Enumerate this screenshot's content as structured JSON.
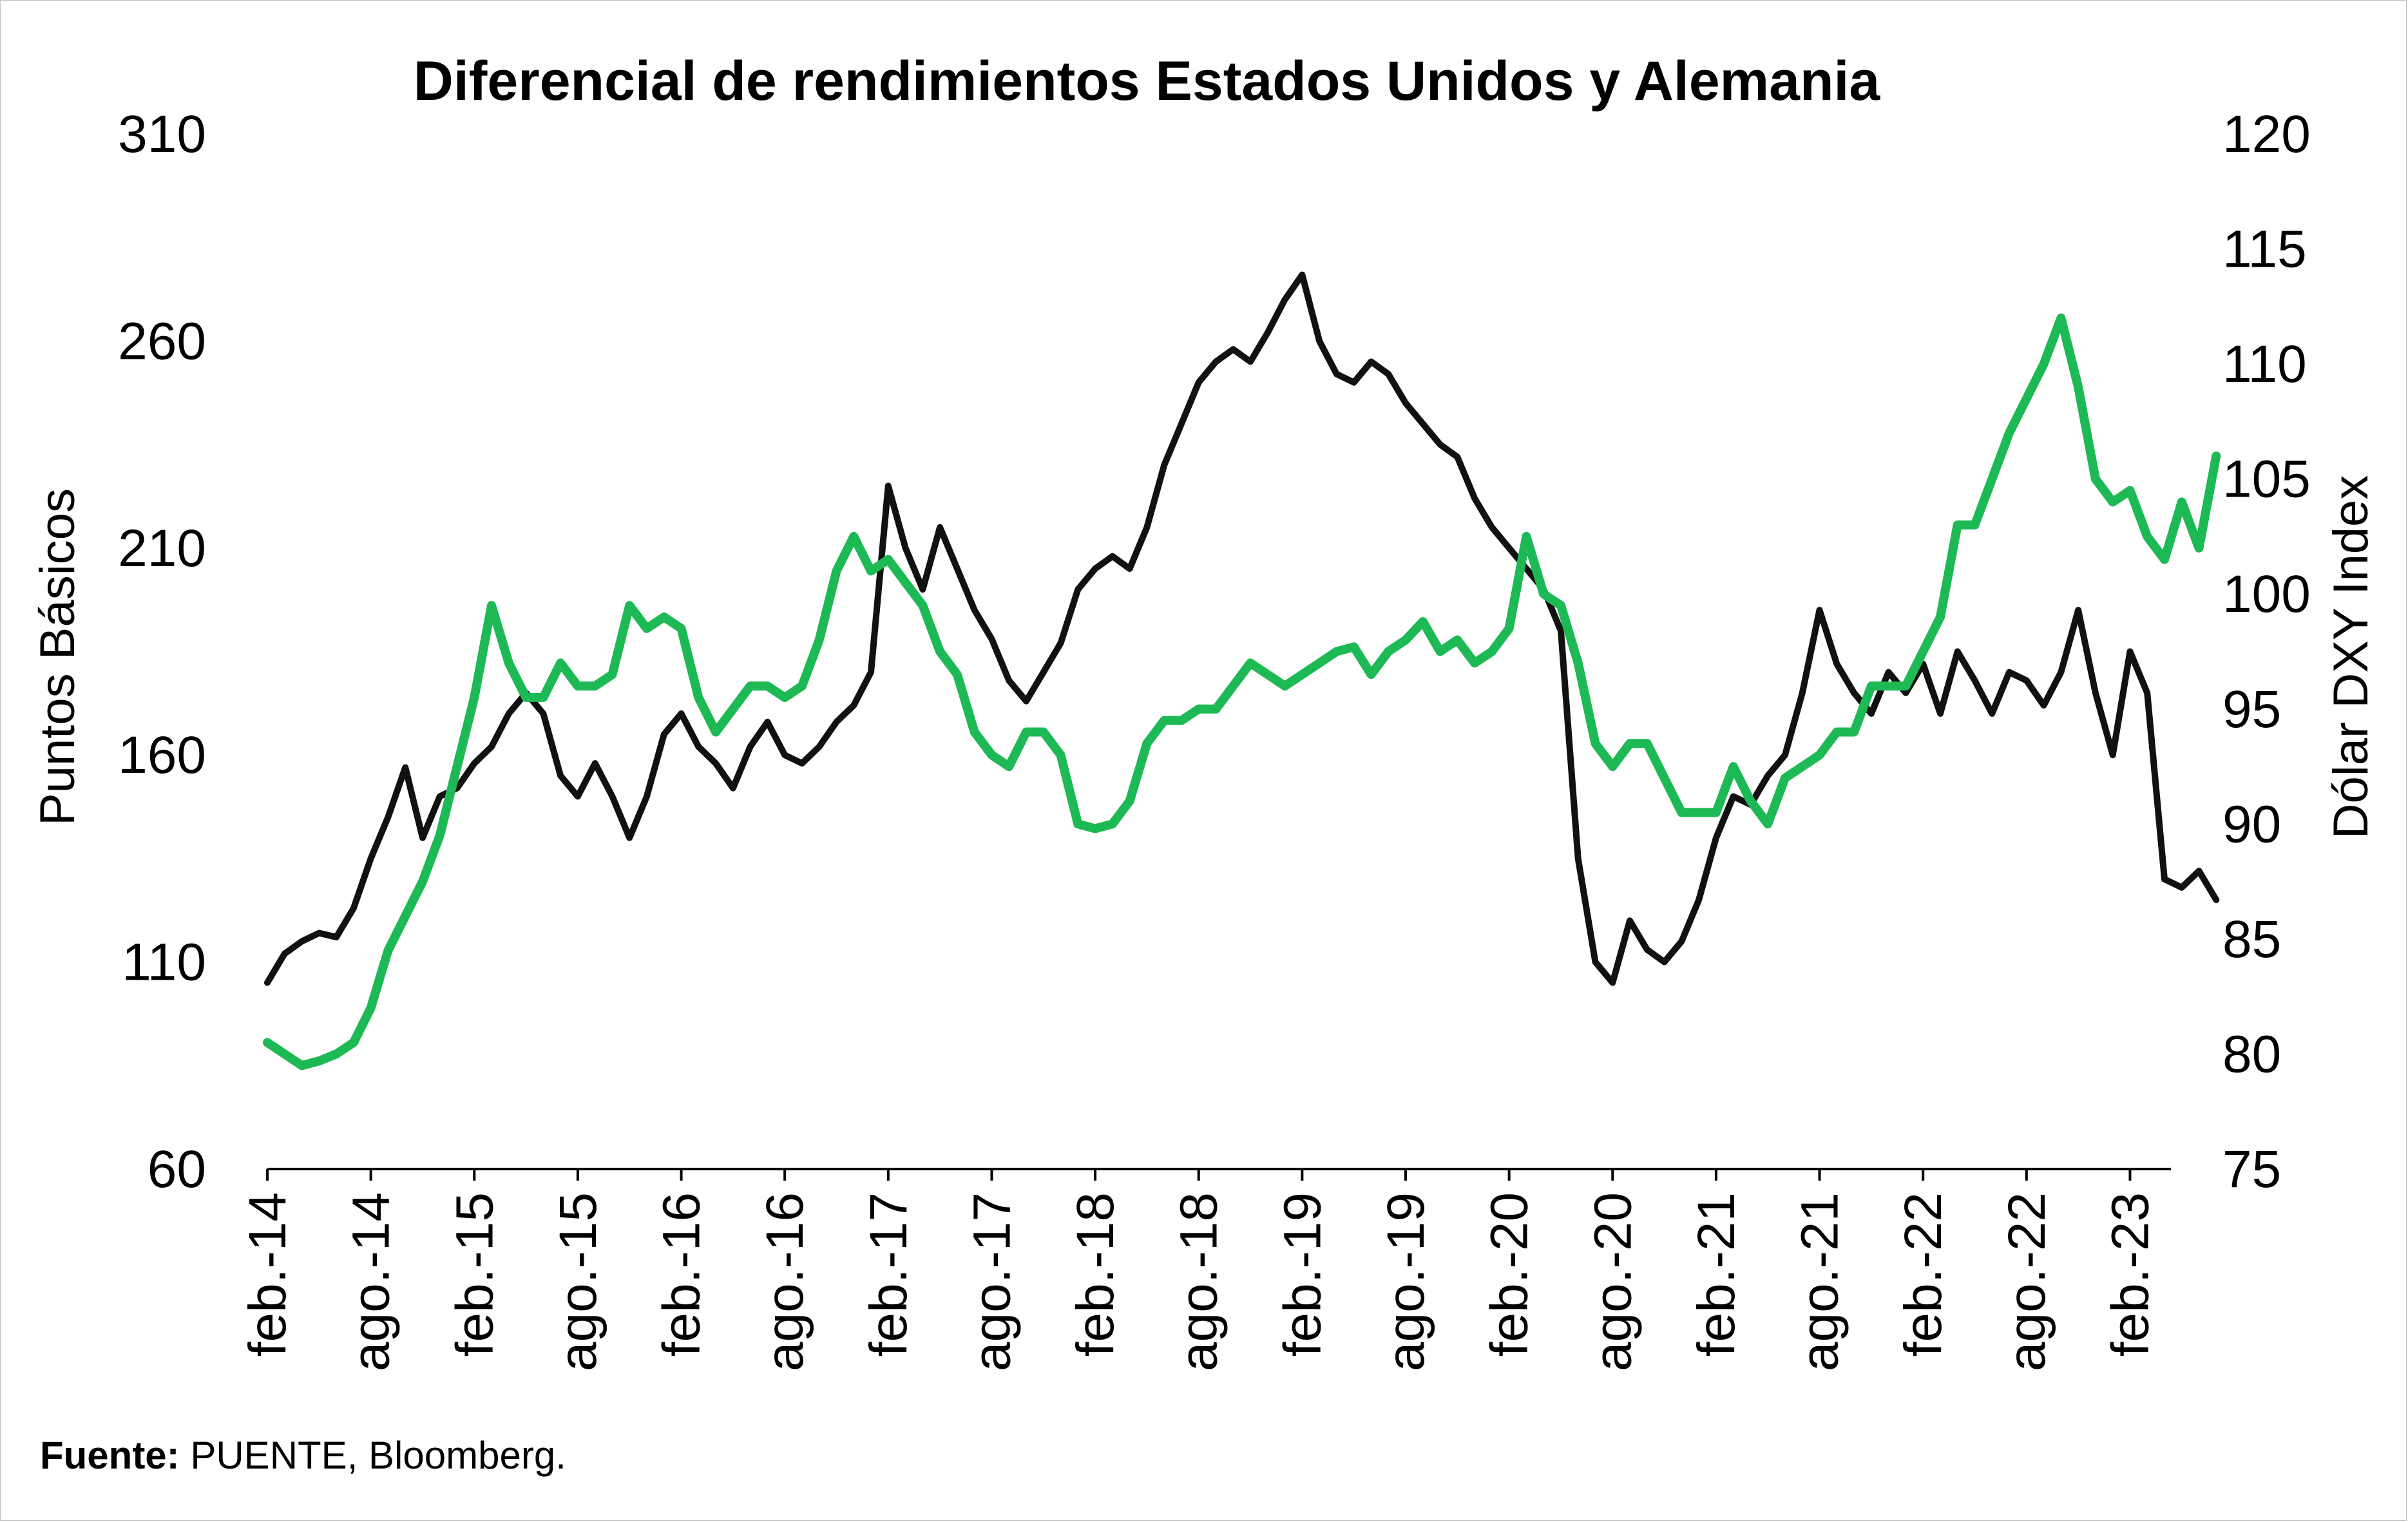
{
  "source": {
    "label": "Fuente:",
    "text": "PUENTE, Bloomberg."
  },
  "colors": {
    "spread": "#111111",
    "dxy": "#1db954",
    "axis": "#000000"
  },
  "chart_data": {
    "type": "line",
    "title": "Diferencial de rendimientos Estados Unidos y Alemania",
    "ylabel": "Puntos Básicos",
    "y2label": "Dólar DXY Index",
    "ylim": [
      60,
      310
    ],
    "y2lim": [
      75,
      120
    ],
    "yticks": [
      "310",
      "260",
      "210",
      "160",
      "110",
      "60"
    ],
    "y2ticks": [
      "120",
      "115",
      "110",
      "105",
      "100",
      "95",
      "90",
      "85",
      "80",
      "75"
    ],
    "xlim": [
      "2014-02",
      "2023-04"
    ],
    "xticks": [
      {
        "label": "feb.-14",
        "date": "2014-02"
      },
      {
        "label": "ago.-14",
        "date": "2014-08"
      },
      {
        "label": "feb.-15",
        "date": "2015-02"
      },
      {
        "label": "ago.-15",
        "date": "2015-08"
      },
      {
        "label": "feb.-16",
        "date": "2016-02"
      },
      {
        "label": "ago.-16",
        "date": "2016-08"
      },
      {
        "label": "feb.-17",
        "date": "2017-02"
      },
      {
        "label": "ago.-17",
        "date": "2017-08"
      },
      {
        "label": "feb.-18",
        "date": "2018-02"
      },
      {
        "label": "ago.-18",
        "date": "2018-08"
      },
      {
        "label": "feb.-19",
        "date": "2019-02"
      },
      {
        "label": "ago.-19",
        "date": "2019-08"
      },
      {
        "label": "feb.-20",
        "date": "2020-02"
      },
      {
        "label": "ago.-20",
        "date": "2020-08"
      },
      {
        "label": "feb.-21",
        "date": "2021-02"
      },
      {
        "label": "ago.-21",
        "date": "2021-08"
      },
      {
        "label": "feb.-22",
        "date": "2022-02"
      },
      {
        "label": "ago.-22",
        "date": "2022-08"
      },
      {
        "label": "feb.-23",
        "date": "2023-02"
      }
    ],
    "series": [
      {
        "axis": "left",
        "color": "#111111",
        "points": [
          [
            "2014-02",
            105
          ],
          [
            "2014-03",
            112
          ],
          [
            "2014-04",
            115
          ],
          [
            "2014-05",
            117
          ],
          [
            "2014-06",
            116
          ],
          [
            "2014-07",
            123
          ],
          [
            "2014-08",
            135
          ],
          [
            "2014-09",
            145
          ],
          [
            "2014-10",
            157
          ],
          [
            "2014-11",
            140
          ],
          [
            "2014-12",
            150
          ],
          [
            "2015-01",
            152
          ],
          [
            "2015-02",
            158
          ],
          [
            "2015-03",
            162
          ],
          [
            "2015-04",
            170
          ],
          [
            "2015-05",
            175
          ],
          [
            "2015-06",
            170
          ],
          [
            "2015-07",
            155
          ],
          [
            "2015-08",
            150
          ],
          [
            "2015-09",
            158
          ],
          [
            "2015-10",
            150
          ],
          [
            "2015-11",
            140
          ],
          [
            "2015-12",
            150
          ],
          [
            "2016-01",
            165
          ],
          [
            "2016-02",
            170
          ],
          [
            "2016-03",
            162
          ],
          [
            "2016-04",
            158
          ],
          [
            "2016-05",
            152
          ],
          [
            "2016-06",
            162
          ],
          [
            "2016-07",
            168
          ],
          [
            "2016-08",
            160
          ],
          [
            "2016-09",
            158
          ],
          [
            "2016-10",
            162
          ],
          [
            "2016-11",
            168
          ],
          [
            "2016-12",
            172
          ],
          [
            "2017-01",
            180
          ],
          [
            "2017-02",
            225
          ],
          [
            "2017-03",
            210
          ],
          [
            "2017-04",
            200
          ],
          [
            "2017-05",
            215
          ],
          [
            "2017-06",
            205
          ],
          [
            "2017-07",
            195
          ],
          [
            "2017-08",
            188
          ],
          [
            "2017-09",
            178
          ],
          [
            "2017-10",
            173
          ],
          [
            "2017-11",
            180
          ],
          [
            "2017-12",
            187
          ],
          [
            "2018-01",
            200
          ],
          [
            "2018-02",
            205
          ],
          [
            "2018-03",
            208
          ],
          [
            "2018-04",
            205
          ],
          [
            "2018-05",
            215
          ],
          [
            "2018-06",
            230
          ],
          [
            "2018-07",
            240
          ],
          [
            "2018-08",
            250
          ],
          [
            "2018-09",
            255
          ],
          [
            "2018-10",
            258
          ],
          [
            "2018-11",
            255
          ],
          [
            "2018-12",
            262
          ],
          [
            "2019-01",
            270
          ],
          [
            "2019-02",
            276
          ],
          [
            "2019-03",
            260
          ],
          [
            "2019-04",
            252
          ],
          [
            "2019-05",
            250
          ],
          [
            "2019-06",
            255
          ],
          [
            "2019-07",
            252
          ],
          [
            "2019-08",
            245
          ],
          [
            "2019-09",
            240
          ],
          [
            "2019-10",
            235
          ],
          [
            "2019-11",
            232
          ],
          [
            "2019-12",
            222
          ],
          [
            "2020-01",
            215
          ],
          [
            "2020-02",
            210
          ],
          [
            "2020-03",
            205
          ],
          [
            "2020-04",
            200
          ],
          [
            "2020-05",
            190
          ],
          [
            "2020-06",
            135
          ],
          [
            "2020-07",
            110
          ],
          [
            "2020-08",
            105
          ],
          [
            "2020-09",
            120
          ],
          [
            "2020-10",
            113
          ],
          [
            "2020-11",
            110
          ],
          [
            "2020-12",
            115
          ],
          [
            "2021-01",
            125
          ],
          [
            "2021-02",
            140
          ],
          [
            "2021-03",
            150
          ],
          [
            "2021-04",
            148
          ],
          [
            "2021-05",
            155
          ],
          [
            "2021-06",
            160
          ],
          [
            "2021-07",
            175
          ],
          [
            "2021-08",
            195
          ],
          [
            "2021-09",
            182
          ],
          [
            "2021-10",
            175
          ],
          [
            "2021-11",
            170
          ],
          [
            "2021-12",
            180
          ],
          [
            "2022-01",
            175
          ],
          [
            "2022-02",
            182
          ],
          [
            "2022-03",
            170
          ],
          [
            "2022-04",
            185
          ],
          [
            "2022-05",
            178
          ],
          [
            "2022-06",
            170
          ],
          [
            "2022-07",
            180
          ],
          [
            "2022-08",
            178
          ],
          [
            "2022-09",
            172
          ],
          [
            "2022-10",
            180
          ],
          [
            "2022-11",
            195
          ],
          [
            "2022-12",
            175
          ],
          [
            "2023-01",
            160
          ],
          [
            "2023-02",
            185
          ],
          [
            "2023-03",
            175
          ],
          [
            "2023-04",
            130
          ],
          [
            "2023-05",
            128
          ],
          [
            "2023-06",
            132
          ],
          [
            "2023-07",
            125
          ]
        ]
      },
      {
        "axis": "right",
        "color": "#1db954",
        "points": [
          [
            "2014-02",
            80.5
          ],
          [
            "2014-03",
            80.0
          ],
          [
            "2014-04",
            79.5
          ],
          [
            "2014-05",
            79.7
          ],
          [
            "2014-06",
            80.0
          ],
          [
            "2014-07",
            80.5
          ],
          [
            "2014-08",
            82.0
          ],
          [
            "2014-09",
            84.5
          ],
          [
            "2014-10",
            86.0
          ],
          [
            "2014-11",
            87.5
          ],
          [
            "2014-12",
            89.5
          ],
          [
            "2015-01",
            92.5
          ],
          [
            "2015-02",
            95.5
          ],
          [
            "2015-03",
            99.5
          ],
          [
            "2015-04",
            97.0
          ],
          [
            "2015-05",
            95.5
          ],
          [
            "2015-06",
            95.5
          ],
          [
            "2015-07",
            97.0
          ],
          [
            "2015-08",
            96.0
          ],
          [
            "2015-09",
            96.0
          ],
          [
            "2015-10",
            96.5
          ],
          [
            "2015-11",
            99.5
          ],
          [
            "2015-12",
            98.5
          ],
          [
            "2016-01",
            99.0
          ],
          [
            "2016-02",
            98.5
          ],
          [
            "2016-03",
            95.5
          ],
          [
            "2016-04",
            94.0
          ],
          [
            "2016-05",
            95.0
          ],
          [
            "2016-06",
            96.0
          ],
          [
            "2016-07",
            96.0
          ],
          [
            "2016-08",
            95.5
          ],
          [
            "2016-09",
            96.0
          ],
          [
            "2016-10",
            98.0
          ],
          [
            "2016-11",
            101.0
          ],
          [
            "2016-12",
            102.5
          ],
          [
            "2017-01",
            101.0
          ],
          [
            "2017-02",
            101.5
          ],
          [
            "2017-03",
            100.5
          ],
          [
            "2017-04",
            99.5
          ],
          [
            "2017-05",
            97.5
          ],
          [
            "2017-06",
            96.5
          ],
          [
            "2017-07",
            94.0
          ],
          [
            "2017-08",
            93.0
          ],
          [
            "2017-09",
            92.5
          ],
          [
            "2017-10",
            94.0
          ],
          [
            "2017-11",
            94.0
          ],
          [
            "2017-12",
            93.0
          ],
          [
            "2018-01",
            90.0
          ],
          [
            "2018-02",
            89.8
          ],
          [
            "2018-03",
            90.0
          ],
          [
            "2018-04",
            91.0
          ],
          [
            "2018-05",
            93.5
          ],
          [
            "2018-06",
            94.5
          ],
          [
            "2018-07",
            94.5
          ],
          [
            "2018-08",
            95.0
          ],
          [
            "2018-09",
            95.0
          ],
          [
            "2018-10",
            96.0
          ],
          [
            "2018-11",
            97.0
          ],
          [
            "2018-12",
            96.5
          ],
          [
            "2019-01",
            96.0
          ],
          [
            "2019-02",
            96.5
          ],
          [
            "2019-03",
            97.0
          ],
          [
            "2019-04",
            97.5
          ],
          [
            "2019-05",
            97.7
          ],
          [
            "2019-06",
            96.5
          ],
          [
            "2019-07",
            97.5
          ],
          [
            "2019-08",
            98.0
          ],
          [
            "2019-09",
            98.8
          ],
          [
            "2019-10",
            97.5
          ],
          [
            "2019-11",
            98.0
          ],
          [
            "2019-12",
            97.0
          ],
          [
            "2020-01",
            97.5
          ],
          [
            "2020-02",
            98.5
          ],
          [
            "2020-03",
            102.5
          ],
          [
            "2020-04",
            100.0
          ],
          [
            "2020-05",
            99.5
          ],
          [
            "2020-06",
            97.0
          ],
          [
            "2020-07",
            93.5
          ],
          [
            "2020-08",
            92.5
          ],
          [
            "2020-09",
            93.5
          ],
          [
            "2020-10",
            93.5
          ],
          [
            "2020-11",
            92.0
          ],
          [
            "2020-12",
            90.5
          ],
          [
            "2021-01",
            90.5
          ],
          [
            "2021-02",
            90.5
          ],
          [
            "2021-03",
            92.5
          ],
          [
            "2021-04",
            91.0
          ],
          [
            "2021-05",
            90.0
          ],
          [
            "2021-06",
            92.0
          ],
          [
            "2021-07",
            92.5
          ],
          [
            "2021-08",
            93.0
          ],
          [
            "2021-09",
            94.0
          ],
          [
            "2021-10",
            94.0
          ],
          [
            "2021-11",
            96.0
          ],
          [
            "2021-12",
            96.0
          ],
          [
            "2022-01",
            96.0
          ],
          [
            "2022-02",
            97.5
          ],
          [
            "2022-03",
            99.0
          ],
          [
            "2022-04",
            103.0
          ],
          [
            "2022-05",
            103.0
          ],
          [
            "2022-06",
            105.0
          ],
          [
            "2022-07",
            107.0
          ],
          [
            "2022-08",
            108.5
          ],
          [
            "2022-09",
            110.0
          ],
          [
            "2022-10",
            112.0
          ],
          [
            "2022-11",
            109.0
          ],
          [
            "2022-12",
            105.0
          ],
          [
            "2023-01",
            104.0
          ],
          [
            "2023-02",
            104.5
          ],
          [
            "2023-03",
            102.5
          ],
          [
            "2023-04",
            101.5
          ],
          [
            "2023-05",
            104.0
          ],
          [
            "2023-06",
            102.0
          ],
          [
            "2023-07",
            106.0
          ]
        ]
      }
    ]
  }
}
